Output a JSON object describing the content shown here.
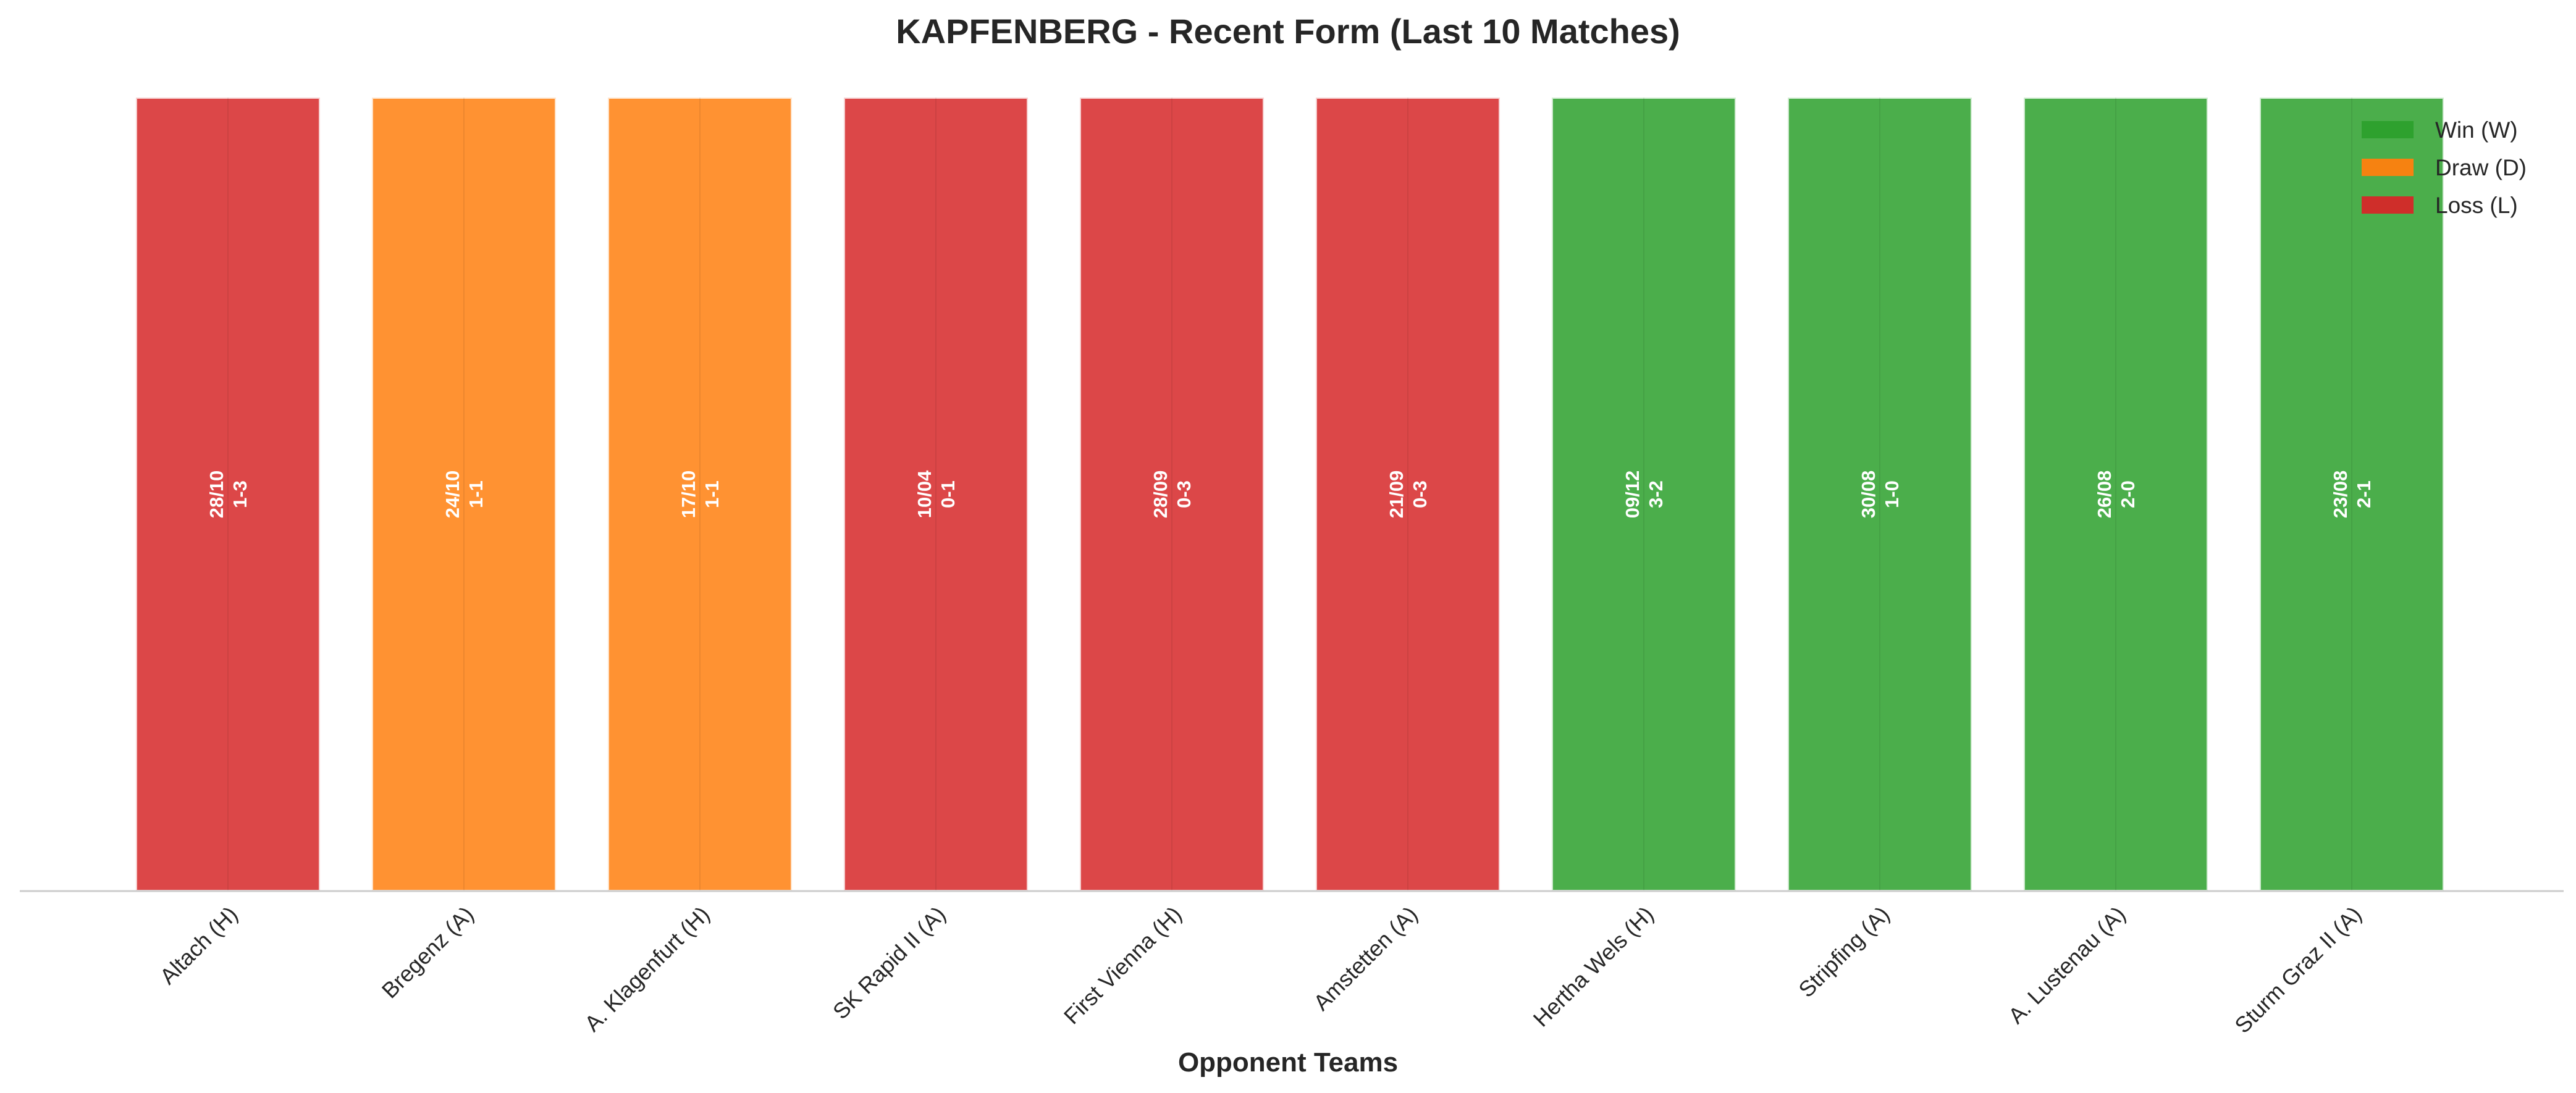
{
  "chart_data": {
    "type": "bar",
    "title": "KAPFENBERG - Recent Form (Last 10 Matches)",
    "xlabel": "Opponent Teams",
    "ylabel": "",
    "grid": false,
    "legend_placement": "top-right",
    "colors": {
      "W": "#2ca02c",
      "D": "#ff7f0e",
      "L": "#d62728"
    },
    "legend": [
      {
        "key": "W",
        "label": "Win (W)"
      },
      {
        "key": "D",
        "label": "Draw (D)"
      },
      {
        "key": "L",
        "label": "Loss (L)"
      }
    ],
    "categories": [
      "Altach (H)",
      "Bregenz (A)",
      "A. Klagenfurt (H)",
      "SK Rapid II (A)",
      "First Vienna (H)",
      "Amstetten (A)",
      "Hertha Wels (H)",
      "Stripfing (A)",
      "A. Lustenau (A)",
      "Sturm Graz II (A)"
    ],
    "matches": [
      {
        "opponent": "Altach (H)",
        "date": "28/10",
        "score": "1-3",
        "result": "L"
      },
      {
        "opponent": "Bregenz (A)",
        "date": "24/10",
        "score": "1-1",
        "result": "D"
      },
      {
        "opponent": "A. Klagenfurt (H)",
        "date": "17/10",
        "score": "1-1",
        "result": "D"
      },
      {
        "opponent": "SK Rapid II (A)",
        "date": "10/04",
        "score": "0-1",
        "result": "L"
      },
      {
        "opponent": "First Vienna (H)",
        "date": "28/09",
        "score": "0-3",
        "result": "L"
      },
      {
        "opponent": "Amstetten (A)",
        "date": "21/09",
        "score": "0-3",
        "result": "L"
      },
      {
        "opponent": "Hertha Wels (H)",
        "date": "09/12",
        "score": "3-2",
        "result": "W"
      },
      {
        "opponent": "Stripfing (A)",
        "date": "30/08",
        "score": "1-0",
        "result": "W"
      },
      {
        "opponent": "A. Lustenau (A)",
        "date": "26/08",
        "score": "2-0",
        "result": "W"
      },
      {
        "opponent": "Sturm Graz II (A)",
        "date": "23/08",
        "score": "2-1",
        "result": "W"
      }
    ],
    "values": [
      1,
      1,
      1,
      1,
      1,
      1,
      1,
      1,
      1,
      1
    ],
    "ylim": [
      0,
      1
    ]
  }
}
